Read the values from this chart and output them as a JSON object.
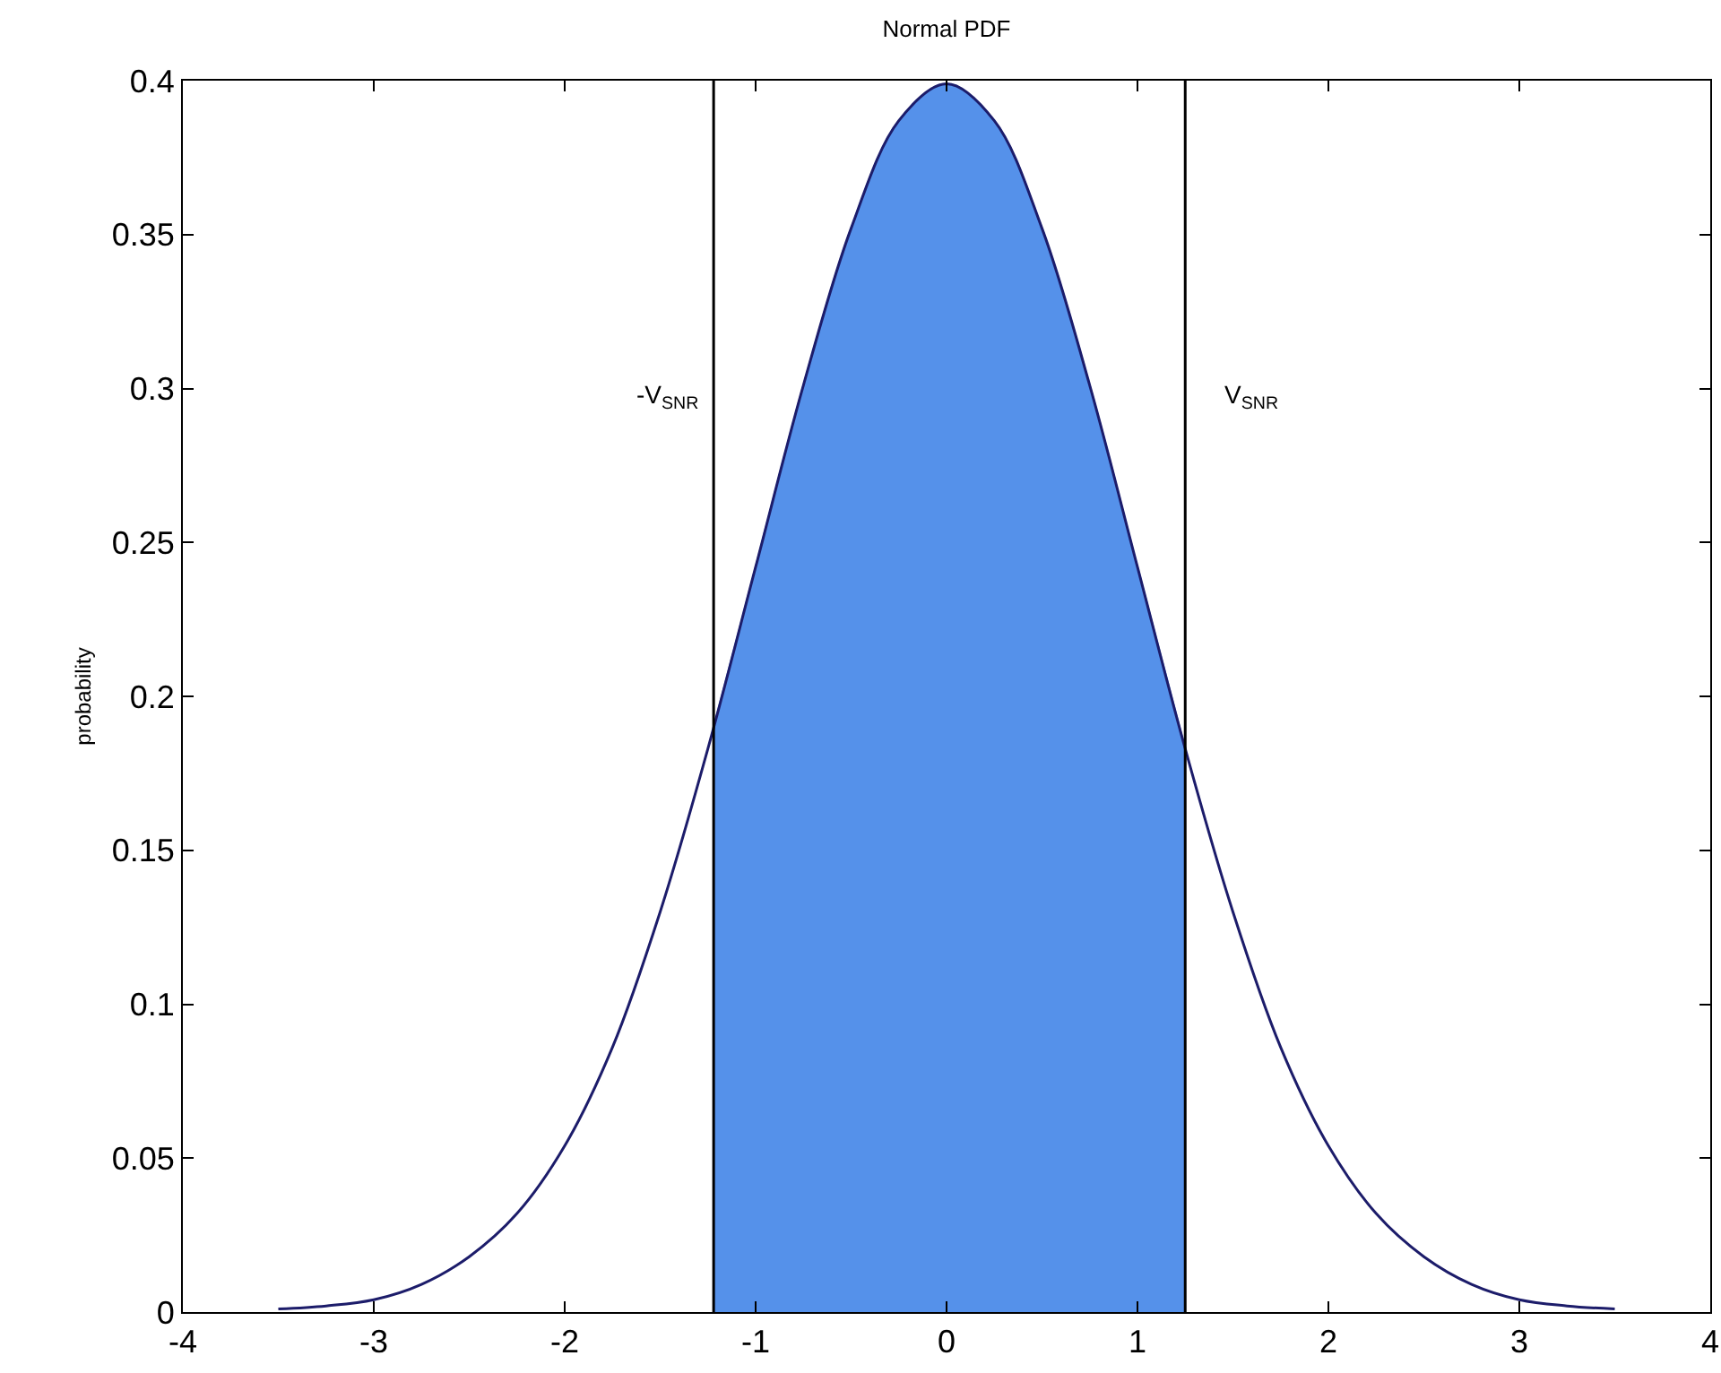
{
  "chart_data": {
    "type": "line",
    "title": "Normal PDF",
    "ylabel": "probability",
    "series": [
      {
        "type": "area",
        "color": "#5591ea",
        "x": [
          -1.22,
          -1,
          -0.75,
          -0.5,
          -0.25,
          0,
          0.25,
          0.5,
          0.75,
          1,
          1.25
        ],
        "values": [
          0.19,
          0.242,
          0.301,
          0.352,
          0.387,
          0.399,
          0.387,
          0.352,
          0.301,
          0.242,
          0.183
        ]
      },
      {
        "color": "#1c1c6a",
        "x": [
          -3.5,
          -3.25,
          -3,
          -2.75,
          -2.5,
          -2.25,
          -2,
          -1.75,
          -1.5,
          -1.25,
          -1,
          -0.75,
          -0.5,
          -0.25,
          0,
          0.25,
          0.5,
          0.75,
          1,
          1.25,
          1.5,
          1.75,
          2,
          2.25,
          2.5,
          2.75,
          3,
          3.25,
          3.5
        ],
        "values": [
          0.001,
          0.002,
          0.004,
          0.009,
          0.018,
          0.032,
          0.054,
          0.086,
          0.13,
          0.183,
          0.242,
          0.301,
          0.352,
          0.387,
          0.399,
          0.387,
          0.352,
          0.301,
          0.242,
          0.183,
          0.13,
          0.086,
          0.054,
          0.032,
          0.018,
          0.009,
          0.004,
          0.002,
          0.001
        ]
      }
    ],
    "ref_lines": [
      {
        "axis": "x",
        "value": -1.22,
        "label": "-V$_{SNR}$",
        "color": "#000000"
      },
      {
        "axis": "x",
        "value": 1.25,
        "label": "V$_{SNR}$",
        "color": "#000000"
      }
    ],
    "xlim": [
      -4,
      4
    ],
    "xticks": [
      -4,
      -3,
      -2,
      -1,
      0,
      1,
      2,
      3,
      4
    ],
    "ylim": [
      0,
      0.4
    ],
    "yticks": [
      0,
      0.05,
      0.1,
      0.15,
      0.2,
      0.25,
      0.3,
      0.35,
      0.4
    ],
    "grid": false,
    "legend": false
  }
}
